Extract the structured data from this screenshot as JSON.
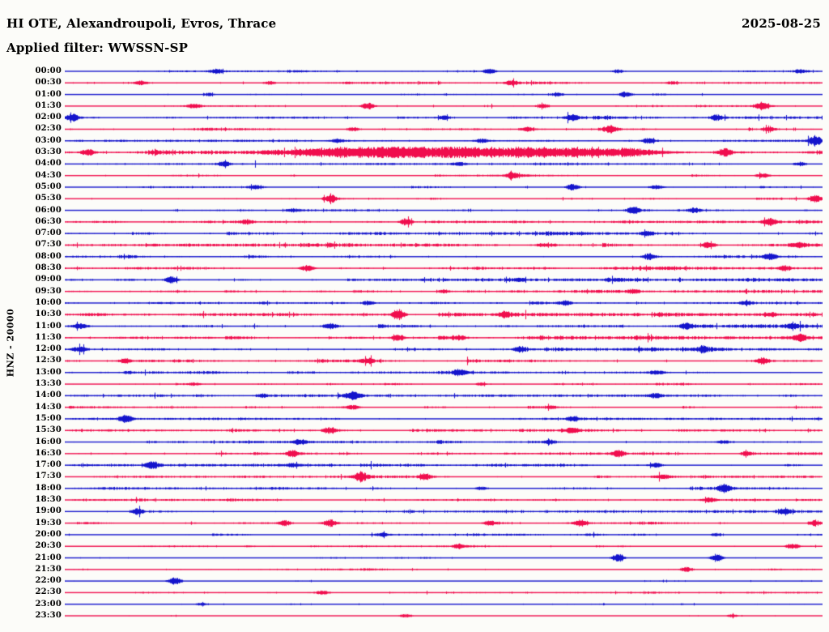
{
  "header": {
    "station_line": "HI OTE, Alexandroupoli, Evros, Thrace",
    "date": "2025-08-25",
    "filter_line": "Applied filter: WWSSN-SP"
  },
  "y_axis_label": "HNZ - 20000",
  "colors": {
    "red": "#f00d4d",
    "blue": "#1414cc",
    "text": "#000000",
    "background": "#fcfcf9"
  },
  "chart_data": {
    "type": "line",
    "subtype": "helicorder-seismogram",
    "title": "HI OTE, Alexandroupoli, Evros, Thrace",
    "date": "2025-08-25",
    "filter": "WWSSN-SP",
    "channel_scale_label": "HNZ - 20000",
    "minutes_per_row": 30,
    "rows_per_day": 48,
    "trace_color_pattern": [
      "blue",
      "red"
    ],
    "legend": "none",
    "grid": "off",
    "note": "Each row = 30 min of continuous waveform. 'noise' is relative background amplitude; events are visible bursts at fraction t of the row with relative amplitude a (0-1 of row half-height) and width w (fraction of row).",
    "rows": [
      {
        "time": "00:00",
        "color": "blue",
        "noise": 1.0,
        "events": [
          {
            "t": 0.2,
            "a": 0.3
          },
          {
            "t": 0.56,
            "a": 0.35
          },
          {
            "t": 0.73,
            "a": 0.25
          },
          {
            "t": 0.97,
            "a": 0.25
          }
        ]
      },
      {
        "time": "00:30",
        "color": "red",
        "noise": 1.2,
        "events": [
          {
            "t": 0.1,
            "a": 0.3
          },
          {
            "t": 0.27,
            "a": 0.25
          },
          {
            "t": 0.59,
            "a": 0.35
          },
          {
            "t": 0.8,
            "a": 0.2
          }
        ]
      },
      {
        "time": "01:00",
        "color": "blue",
        "noise": 0.8,
        "events": [
          {
            "t": 0.19,
            "a": 0.25
          },
          {
            "t": 0.65,
            "a": 0.3
          },
          {
            "t": 0.74,
            "a": 0.45
          }
        ]
      },
      {
        "time": "01:30",
        "color": "red",
        "noise": 1.0,
        "events": [
          {
            "t": 0.17,
            "a": 0.35
          },
          {
            "t": 0.4,
            "a": 0.5
          },
          {
            "t": 0.63,
            "a": 0.3
          },
          {
            "t": 0.92,
            "a": 0.55
          }
        ]
      },
      {
        "time": "02:00",
        "color": "blue",
        "noise": 1.4,
        "events": [
          {
            "t": 0.01,
            "a": 0.55
          },
          {
            "t": 0.5,
            "a": 0.3
          },
          {
            "t": 0.67,
            "a": 0.5
          },
          {
            "t": 0.86,
            "a": 0.5
          }
        ]
      },
      {
        "time": "02:30",
        "color": "red",
        "noise": 1.2,
        "events": [
          {
            "t": 0.38,
            "a": 0.3
          },
          {
            "t": 0.61,
            "a": 0.35
          },
          {
            "t": 0.72,
            "a": 0.5
          },
          {
            "t": 0.93,
            "a": 0.3
          }
        ]
      },
      {
        "time": "03:00",
        "color": "blue",
        "noise": 1.2,
        "events": [
          {
            "t": 0.36,
            "a": 0.3
          },
          {
            "t": 0.55,
            "a": 0.3
          },
          {
            "t": 0.77,
            "a": 0.4
          },
          {
            "t": 0.99,
            "a": 0.8
          }
        ]
      },
      {
        "time": "03:30",
        "color": "red",
        "noise": 2.0,
        "events": [
          {
            "t": 0.03,
            "a": 0.5
          },
          {
            "t": 0.53,
            "a": 0.7,
            "w": 0.42
          },
          {
            "t": 0.87,
            "a": 0.7
          }
        ]
      },
      {
        "time": "04:00",
        "color": "blue",
        "noise": 1.0,
        "events": [
          {
            "t": 0.21,
            "a": 0.35
          },
          {
            "t": 0.52,
            "a": 0.25
          },
          {
            "t": 0.97,
            "a": 0.3
          }
        ]
      },
      {
        "time": "04:30",
        "color": "red",
        "noise": 1.0,
        "events": [
          {
            "t": 0.59,
            "a": 0.5
          },
          {
            "t": 0.92,
            "a": 0.35
          }
        ]
      },
      {
        "time": "05:00",
        "color": "blue",
        "noise": 1.0,
        "events": [
          {
            "t": 0.25,
            "a": 0.3
          },
          {
            "t": 0.67,
            "a": 0.5
          },
          {
            "t": 0.78,
            "a": 0.25
          }
        ]
      },
      {
        "time": "05:30",
        "color": "red",
        "noise": 1.1,
        "events": [
          {
            "t": 0.35,
            "a": 0.6
          },
          {
            "t": 0.99,
            "a": 0.5
          }
        ]
      },
      {
        "time": "06:00",
        "color": "blue",
        "noise": 1.2,
        "events": [
          {
            "t": 0.3,
            "a": 0.25
          },
          {
            "t": 0.75,
            "a": 0.5
          },
          {
            "t": 0.83,
            "a": 0.35
          }
        ]
      },
      {
        "time": "06:30",
        "color": "red",
        "noise": 1.4,
        "events": [
          {
            "t": 0.24,
            "a": 0.3
          },
          {
            "t": 0.45,
            "a": 0.55
          },
          {
            "t": 0.93,
            "a": 0.5
          }
        ]
      },
      {
        "time": "07:00",
        "color": "blue",
        "noise": 1.6,
        "events": [
          {
            "t": 0.77,
            "a": 0.3
          }
        ]
      },
      {
        "time": "07:30",
        "color": "red",
        "noise": 1.8,
        "events": [
          {
            "t": 0.85,
            "a": 0.5
          },
          {
            "t": 0.97,
            "a": 0.3
          }
        ]
      },
      {
        "time": "08:00",
        "color": "blue",
        "noise": 1.6,
        "events": [
          {
            "t": 0.77,
            "a": 0.45
          },
          {
            "t": 0.93,
            "a": 0.5
          }
        ]
      },
      {
        "time": "08:30",
        "color": "red",
        "noise": 1.6,
        "events": [
          {
            "t": 0.32,
            "a": 0.45
          },
          {
            "t": 0.95,
            "a": 0.35
          }
        ]
      },
      {
        "time": "09:00",
        "color": "blue",
        "noise": 1.6,
        "events": [
          {
            "t": 0.14,
            "a": 0.5
          },
          {
            "t": 0.6,
            "a": 0.25
          }
        ]
      },
      {
        "time": "09:30",
        "color": "red",
        "noise": 1.6,
        "events": [
          {
            "t": 0.5,
            "a": 0.25
          },
          {
            "t": 0.75,
            "a": 0.25
          }
        ]
      },
      {
        "time": "10:00",
        "color": "blue",
        "noise": 1.8,
        "events": [
          {
            "t": 0.4,
            "a": 0.3
          },
          {
            "t": 0.66,
            "a": 0.35
          },
          {
            "t": 0.9,
            "a": 0.3
          }
        ]
      },
      {
        "time": "10:30",
        "color": "red",
        "noise": 1.8,
        "events": [
          {
            "t": 0.44,
            "a": 0.75
          },
          {
            "t": 0.58,
            "a": 0.35
          },
          {
            "t": 0.93,
            "a": 0.3
          }
        ]
      },
      {
        "time": "11:00",
        "color": "blue",
        "noise": 2.0,
        "events": [
          {
            "t": 0.02,
            "a": 0.4
          },
          {
            "t": 0.35,
            "a": 0.45
          },
          {
            "t": 0.82,
            "a": 0.45
          },
          {
            "t": 0.96,
            "a": 0.3
          }
        ]
      },
      {
        "time": "11:30",
        "color": "red",
        "noise": 1.8,
        "events": [
          {
            "t": 0.44,
            "a": 0.5
          },
          {
            "t": 0.52,
            "a": 0.3
          },
          {
            "t": 0.97,
            "a": 0.5
          }
        ]
      },
      {
        "time": "12:00",
        "color": "blue",
        "noise": 1.8,
        "events": [
          {
            "t": 0.02,
            "a": 0.4
          },
          {
            "t": 0.6,
            "a": 0.45
          },
          {
            "t": 0.84,
            "a": 0.3
          }
        ]
      },
      {
        "time": "12:30",
        "color": "red",
        "noise": 1.6,
        "events": [
          {
            "t": 0.08,
            "a": 0.3
          },
          {
            "t": 0.4,
            "a": 0.35
          },
          {
            "t": 0.92,
            "a": 0.5
          }
        ]
      },
      {
        "time": "13:00",
        "color": "blue",
        "noise": 1.4,
        "events": [
          {
            "t": 0.52,
            "a": 0.45
          },
          {
            "t": 0.78,
            "a": 0.3
          }
        ]
      },
      {
        "time": "13:30",
        "color": "red",
        "noise": 1.2,
        "events": [
          {
            "t": 0.17,
            "a": 0.2
          },
          {
            "t": 0.55,
            "a": 0.2
          }
        ]
      },
      {
        "time": "14:00",
        "color": "blue",
        "noise": 1.4,
        "events": [
          {
            "t": 0.26,
            "a": 0.3
          },
          {
            "t": 0.38,
            "a": 0.5
          },
          {
            "t": 0.78,
            "a": 0.35
          }
        ]
      },
      {
        "time": "14:30",
        "color": "red",
        "noise": 1.3,
        "events": [
          {
            "t": 0.38,
            "a": 0.3
          },
          {
            "t": 0.64,
            "a": 0.25
          }
        ]
      },
      {
        "time": "15:00",
        "color": "blue",
        "noise": 1.3,
        "events": [
          {
            "t": 0.08,
            "a": 0.5
          },
          {
            "t": 0.67,
            "a": 0.3
          }
        ]
      },
      {
        "time": "15:30",
        "color": "red",
        "noise": 1.3,
        "events": [
          {
            "t": 0.35,
            "a": 0.5
          },
          {
            "t": 0.67,
            "a": 0.35
          }
        ]
      },
      {
        "time": "16:00",
        "color": "blue",
        "noise": 1.3,
        "events": [
          {
            "t": 0.31,
            "a": 0.35
          },
          {
            "t": 0.64,
            "a": 0.3
          },
          {
            "t": 0.87,
            "a": 0.25
          }
        ]
      },
      {
        "time": "16:30",
        "color": "red",
        "noise": 1.3,
        "events": [
          {
            "t": 0.3,
            "a": 0.45
          },
          {
            "t": 0.73,
            "a": 0.5
          },
          {
            "t": 0.9,
            "a": 0.35
          }
        ]
      },
      {
        "time": "17:00",
        "color": "blue",
        "noise": 1.3,
        "events": [
          {
            "t": 0.115,
            "a": 0.6
          },
          {
            "t": 0.3,
            "a": 0.25
          },
          {
            "t": 0.78,
            "a": 0.35
          }
        ]
      },
      {
        "time": "17:30",
        "color": "red",
        "noise": 1.3,
        "events": [
          {
            "t": 0.39,
            "a": 0.65
          },
          {
            "t": 0.475,
            "a": 0.5
          },
          {
            "t": 0.79,
            "a": 0.25
          }
        ]
      },
      {
        "time": "18:00",
        "color": "blue",
        "noise": 1.2,
        "events": [
          {
            "t": 0.55,
            "a": 0.25
          },
          {
            "t": 0.87,
            "a": 0.55
          }
        ]
      },
      {
        "time": "18:30",
        "color": "red",
        "noise": 1.1,
        "events": [
          {
            "t": 0.85,
            "a": 0.3
          }
        ]
      },
      {
        "time": "19:00",
        "color": "blue",
        "noise": 1.2,
        "events": [
          {
            "t": 0.096,
            "a": 0.5
          },
          {
            "t": 0.95,
            "a": 0.45
          }
        ]
      },
      {
        "time": "19:30",
        "color": "red",
        "noise": 1.2,
        "events": [
          {
            "t": 0.29,
            "a": 0.45
          },
          {
            "t": 0.35,
            "a": 0.55
          },
          {
            "t": 0.56,
            "a": 0.4
          },
          {
            "t": 0.68,
            "a": 0.5
          },
          {
            "t": 0.99,
            "a": 0.4
          }
        ]
      },
      {
        "time": "20:00",
        "color": "blue",
        "noise": 1.0,
        "events": [
          {
            "t": 0.42,
            "a": 0.25
          },
          {
            "t": 0.86,
            "a": 0.25
          }
        ]
      },
      {
        "time": "20:30",
        "color": "red",
        "noise": 1.0,
        "events": [
          {
            "t": 0.52,
            "a": 0.3
          },
          {
            "t": 0.96,
            "a": 0.45
          }
        ]
      },
      {
        "time": "21:00",
        "color": "blue",
        "noise": 1.0,
        "events": [
          {
            "t": 0.73,
            "a": 0.6
          },
          {
            "t": 0.86,
            "a": 0.5
          }
        ]
      },
      {
        "time": "21:30",
        "color": "red",
        "noise": 1.0,
        "events": [
          {
            "t": 0.82,
            "a": 0.35
          }
        ]
      },
      {
        "time": "22:00",
        "color": "blue",
        "noise": 0.9,
        "events": [
          {
            "t": 0.145,
            "a": 0.55
          }
        ]
      },
      {
        "time": "22:30",
        "color": "red",
        "noise": 0.8,
        "events": [
          {
            "t": 0.34,
            "a": 0.25
          }
        ]
      },
      {
        "time": "23:00",
        "color": "blue",
        "noise": 0.7,
        "events": [
          {
            "t": 0.18,
            "a": 0.2
          }
        ]
      },
      {
        "time": "23:30",
        "color": "red",
        "noise": 0.5,
        "events": [
          {
            "t": 0.45,
            "a": 0.3
          },
          {
            "t": 0.88,
            "a": 0.2
          }
        ]
      }
    ]
  }
}
